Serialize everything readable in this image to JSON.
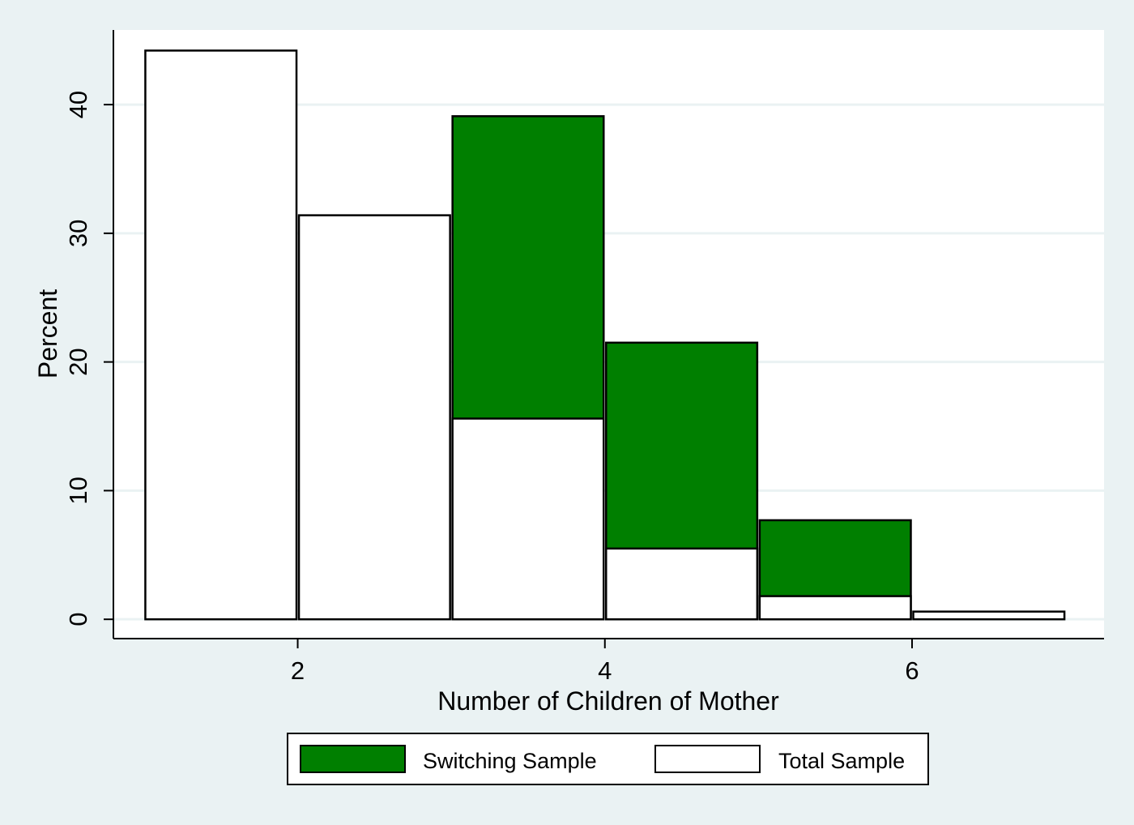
{
  "chart_data": {
    "type": "bar",
    "title": "",
    "xlabel": "Number of Children of Mother",
    "ylabel": "Percent",
    "x_ticks": [
      "2",
      "4",
      "6"
    ],
    "y_ticks": [
      "0",
      "10",
      "20",
      "30",
      "40"
    ],
    "xlim": [
      0.8,
      7.25
    ],
    "ylim": [
      -1.5,
      45.8
    ],
    "grid": true,
    "legend_position": "bottom",
    "series": [
      {
        "name": "Switching Sample",
        "color": "#007f00",
        "bins": [
          {
            "start": 3,
            "end": 4,
            "value": 39.1
          },
          {
            "start": 4,
            "end": 5,
            "value": 21.5
          },
          {
            "start": 5,
            "end": 6,
            "value": 7.7
          }
        ]
      },
      {
        "name": "Total Sample",
        "color": "#ffffff",
        "bins": [
          {
            "start": 1,
            "end": 2,
            "value": 44.2
          },
          {
            "start": 2,
            "end": 3,
            "value": 31.4
          },
          {
            "start": 3,
            "end": 4,
            "value": 15.6
          },
          {
            "start": 4,
            "end": 5,
            "value": 5.5
          },
          {
            "start": 5,
            "end": 6,
            "value": 1.8
          },
          {
            "start": 6,
            "end": 7,
            "value": 0.6
          }
        ]
      }
    ]
  }
}
